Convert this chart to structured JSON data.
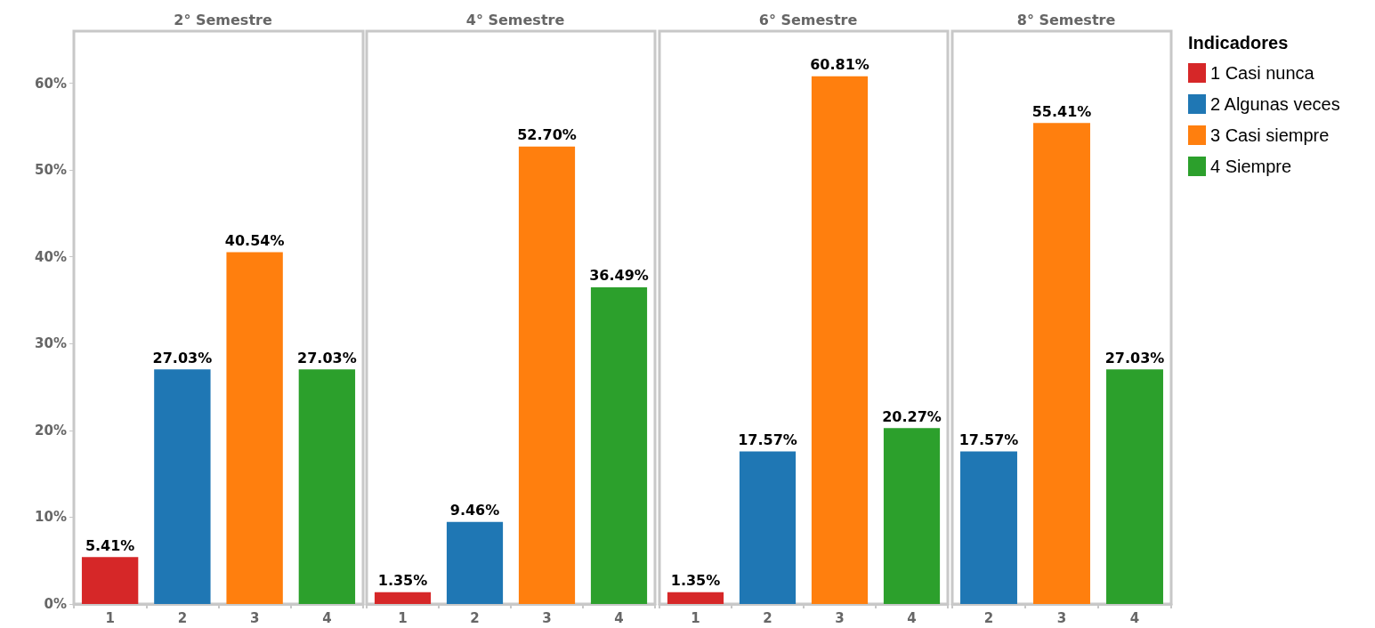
{
  "chart_data": [
    {
      "type": "bar",
      "title": "2° Semestre",
      "categories": [
        "1",
        "2",
        "3",
        "4"
      ],
      "values": [
        5.41,
        27.03,
        40.54,
        27.03
      ],
      "colors": [
        "#d62728",
        "#1f77b4",
        "#ff7f0e",
        "#2ca02c"
      ],
      "value_labels": [
        "5.41%",
        "27.03%",
        "40.54%",
        "27.03%"
      ],
      "ylim": [
        0,
        66
      ],
      "yticks": [
        {
          "value": 0,
          "label": "0%"
        },
        {
          "value": 10,
          "label": "10%"
        },
        {
          "value": 20,
          "label": "20%"
        },
        {
          "value": 30,
          "label": "30%"
        },
        {
          "value": 40,
          "label": "40%"
        },
        {
          "value": 50,
          "label": "50%"
        },
        {
          "value": 60,
          "label": "60%"
        }
      ],
      "grid": false,
      "legend": false
    },
    {
      "type": "bar",
      "title": "4° Semestre",
      "categories": [
        "1",
        "2",
        "3",
        "4"
      ],
      "values": [
        1.35,
        9.46,
        52.7,
        36.49
      ],
      "colors": [
        "#d62728",
        "#1f77b4",
        "#ff7f0e",
        "#2ca02c"
      ],
      "value_labels": [
        "1.35%",
        "9.46%",
        "52.70%",
        "36.49%"
      ],
      "ylim": [
        0,
        66
      ],
      "tick_labels": "x",
      "grid": false,
      "legend": false
    },
    {
      "type": "bar",
      "title": "6° Semestre",
      "categories": [
        "1",
        "2",
        "3",
        "4"
      ],
      "values": [
        1.35,
        17.57,
        60.81,
        20.27
      ],
      "colors": [
        "#d62728",
        "#1f77b4",
        "#ff7f0e",
        "#2ca02c"
      ],
      "value_labels": [
        "1.35%",
        "17.57%",
        "60.81%",
        "20.27%"
      ],
      "ylim": [
        0,
        66
      ],
      "tick_labels": "x",
      "grid": false,
      "legend": false
    },
    {
      "type": "bar",
      "title": "8° Semestre",
      "categories": [
        "2",
        "3",
        "4"
      ],
      "stacked": true,
      "legend_title": "Indicadores",
      "legend": "right",
      "series": [
        {
          "name": "1 Casi nunca",
          "color": "#d62728",
          "values": [
            null,
            null,
            null
          ],
          "value_labels": [
            null,
            null,
            null
          ]
        },
        {
          "name": "2 Algunas veces",
          "color": "#1f77b4",
          "values": [
            17.57,
            null,
            null
          ],
          "value_labels": [
            "17.57%",
            null,
            null
          ]
        },
        {
          "name": "3 Casi siempre",
          "color": "#ff7f0e",
          "values": [
            null,
            55.41,
            null
          ],
          "value_labels": [
            null,
            "55.41%",
            null
          ]
        },
        {
          "name": "4 Siempre",
          "color": "#2ca02c",
          "values": [
            null,
            null,
            27.03
          ],
          "value_labels": [
            null,
            null,
            "27.03%"
          ]
        }
      ],
      "ylim": [
        0,
        66
      ],
      "tick_labels": "x",
      "grid": false
    }
  ]
}
